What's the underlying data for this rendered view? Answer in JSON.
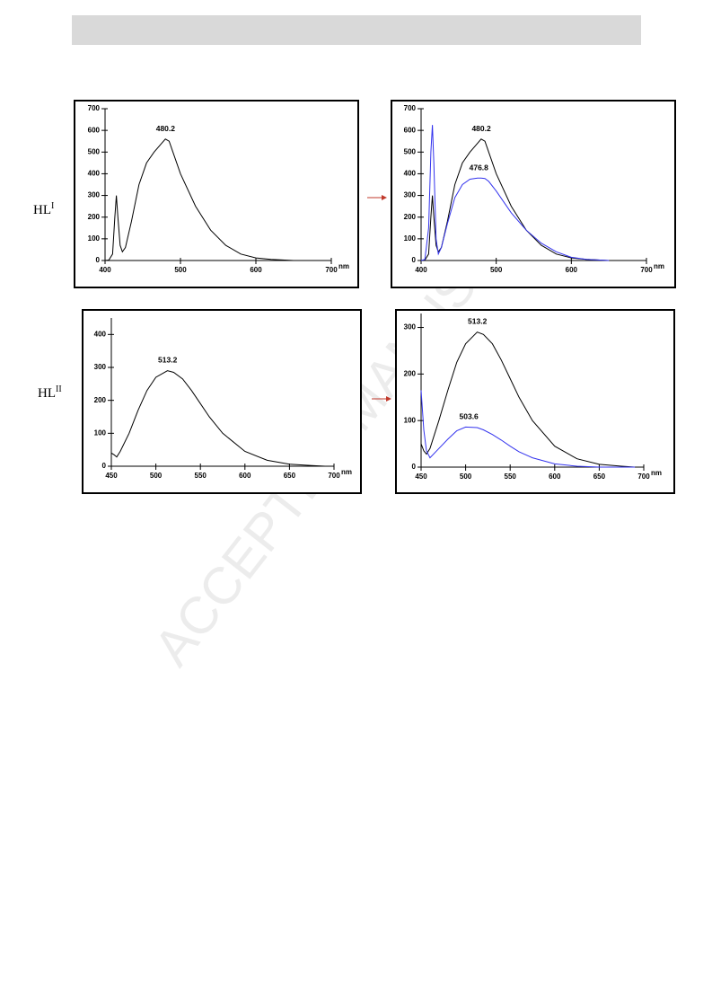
{
  "watermark": "ACCEPTED MANUSCRIPT",
  "row_labels": [
    {
      "base": "HL",
      "sup": "I"
    },
    {
      "base": "HL",
      "sup": "II"
    }
  ],
  "chart_data": [
    {
      "type": "line",
      "x_unit": "nm",
      "x": [
        400,
        405,
        410,
        413,
        415,
        417,
        420,
        423,
        427,
        435,
        445,
        455,
        465,
        475,
        480,
        485,
        490,
        500,
        520,
        540,
        560,
        580,
        600,
        620,
        650
      ],
      "series": [
        {
          "color": "#000000",
          "values": [
            0,
            2,
            30,
            200,
            300,
            200,
            70,
            40,
            60,
            180,
            350,
            450,
            500,
            540,
            560,
            550,
            500,
            400,
            250,
            140,
            70,
            30,
            12,
            5,
            0
          ]
        }
      ],
      "annotations": [
        {
          "x": 480.2,
          "y": 560
        }
      ],
      "xlim": [
        400,
        700
      ],
      "xticks": [
        400,
        500,
        600,
        700
      ],
      "ylim": [
        0,
        700
      ],
      "yticks": [
        0,
        100,
        200,
        300,
        400,
        500,
        600,
        700
      ]
    },
    {
      "type": "line",
      "x_unit": "nm",
      "x": [
        400,
        405,
        410,
        413,
        415,
        417,
        420,
        423,
        427,
        435,
        445,
        455,
        465,
        475,
        480,
        485,
        490,
        500,
        520,
        540,
        560,
        580,
        600,
        620,
        650
      ],
      "series": [
        {
          "color": "#000000",
          "values": [
            0,
            2,
            30,
            200,
            300,
            200,
            70,
            40,
            60,
            180,
            350,
            450,
            500,
            540,
            560,
            550,
            500,
            400,
            250,
            140,
            70,
            30,
            12,
            5,
            0
          ]
        },
        {
          "color": "#3333ee",
          "values": [
            0,
            5,
            150,
            500,
            625,
            450,
            100,
            30,
            60,
            170,
            290,
            350,
            375,
            380,
            380,
            378,
            365,
            320,
            220,
            140,
            80,
            40,
            15,
            5,
            0
          ]
        }
      ],
      "annotations": [
        {
          "x": 480.2,
          "y": 560
        },
        {
          "x": 476.8,
          "y": 380
        }
      ],
      "xlim": [
        400,
        700
      ],
      "xticks": [
        400,
        500,
        600,
        700
      ],
      "ylim": [
        0,
        700
      ],
      "yticks": [
        0,
        100,
        200,
        300,
        400,
        500,
        600,
        700
      ]
    },
    {
      "type": "line",
      "x_unit": "nm",
      "x": [
        450,
        453,
        456,
        460,
        470,
        480,
        490,
        500,
        513,
        520,
        530,
        540,
        550,
        560,
        575,
        600,
        625,
        650,
        675,
        690
      ],
      "series": [
        {
          "color": "#000000",
          "values": [
            40,
            35,
            28,
            45,
            100,
            170,
            230,
            270,
            290,
            285,
            265,
            230,
            190,
            150,
            100,
            45,
            18,
            6,
            2,
            0
          ]
        }
      ],
      "annotations": [
        {
          "x": 513.2,
          "y": 290
        }
      ],
      "xlim": [
        450,
        700
      ],
      "xticks": [
        450,
        500,
        550,
        600,
        650,
        700
      ],
      "ylim": [
        0,
        450
      ],
      "yticks": [
        0,
        100,
        200,
        300,
        400
      ]
    },
    {
      "type": "line",
      "x_unit": "nm",
      "x": [
        450,
        453,
        456,
        460,
        470,
        480,
        490,
        500,
        513,
        520,
        530,
        540,
        550,
        560,
        575,
        600,
        625,
        650,
        675,
        690
      ],
      "series": [
        {
          "color": "#000000",
          "values": [
            50,
            35,
            28,
            40,
            100,
            165,
            225,
            265,
            290,
            285,
            265,
            230,
            190,
            150,
            100,
            45,
            18,
            6,
            2,
            0
          ]
        },
        {
          "color": "#3333ee",
          "values": [
            165,
            80,
            35,
            20,
            40,
            60,
            78,
            86,
            85,
            80,
            70,
            58,
            45,
            33,
            20,
            7,
            2,
            0,
            0,
            0
          ]
        }
      ],
      "annotations": [
        {
          "x": 513.2,
          "y": 290
        },
        {
          "x": 503.6,
          "y": 86
        }
      ],
      "xlim": [
        450,
        700
      ],
      "xticks": [
        450,
        500,
        550,
        600,
        650,
        700
      ],
      "ylim": [
        0,
        330
      ],
      "yticks": [
        0,
        100,
        200,
        300
      ]
    }
  ]
}
